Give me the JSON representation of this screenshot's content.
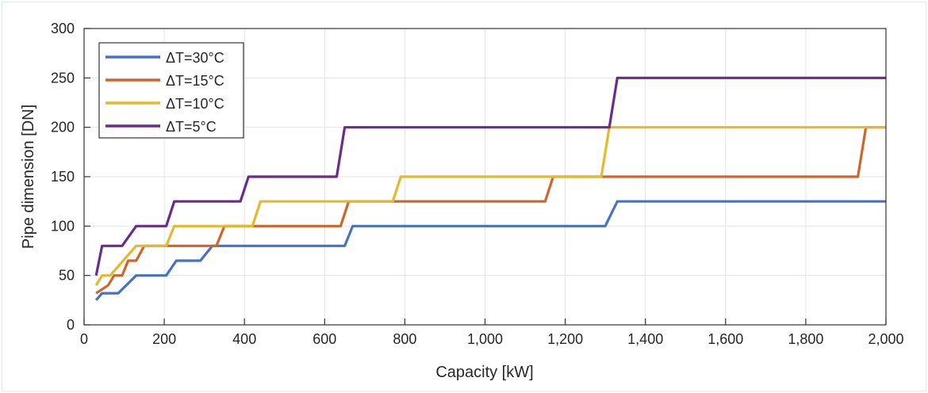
{
  "chart_data": {
    "type": "line",
    "xlabel": "Capacity [kW]",
    "ylabel": "Pipe dimension [DN]",
    "xlim": [
      0,
      2000
    ],
    "ylim": [
      0,
      300
    ],
    "xticks": [
      0,
      200,
      400,
      600,
      800,
      1000,
      1200,
      1400,
      1600,
      1800,
      2000
    ],
    "xtick_labels": [
      "0",
      "200",
      "400",
      "600",
      "800",
      "1,000",
      "1,200",
      "1,400",
      "1,600",
      "1,800",
      "2,000"
    ],
    "yticks": [
      0,
      50,
      100,
      150,
      200,
      250,
      300
    ],
    "ytick_labels": [
      "0",
      "50",
      "100",
      "150",
      "200",
      "250",
      "300"
    ],
    "grid": true,
    "legend_position": "top-left",
    "series": [
      {
        "name": "ΔT=30°C",
        "color": "#4472c4",
        "points": [
          [
            30,
            25
          ],
          [
            45,
            32
          ],
          [
            85,
            32
          ],
          [
            130,
            50
          ],
          [
            205,
            50
          ],
          [
            230,
            65
          ],
          [
            290,
            65
          ],
          [
            320,
            80
          ],
          [
            650,
            80
          ],
          [
            670,
            100
          ],
          [
            1300,
            100
          ],
          [
            1330,
            125
          ],
          [
            2000,
            125
          ]
        ]
      },
      {
        "name": "ΔT=15°C",
        "color": "#d2642a",
        "points": [
          [
            30,
            32
          ],
          [
            60,
            40
          ],
          [
            75,
            50
          ],
          [
            95,
            50
          ],
          [
            110,
            65
          ],
          [
            130,
            65
          ],
          [
            150,
            80
          ],
          [
            330,
            80
          ],
          [
            350,
            100
          ],
          [
            640,
            100
          ],
          [
            660,
            125
          ],
          [
            1150,
            125
          ],
          [
            1170,
            150
          ],
          [
            1930,
            150
          ],
          [
            1950,
            200
          ],
          [
            2000,
            200
          ]
        ]
      },
      {
        "name": "ΔT=10°C",
        "color": "#e6b82e",
        "points": [
          [
            30,
            40
          ],
          [
            45,
            50
          ],
          [
            65,
            50
          ],
          [
            130,
            80
          ],
          [
            205,
            80
          ],
          [
            225,
            100
          ],
          [
            420,
            100
          ],
          [
            440,
            125
          ],
          [
            770,
            125
          ],
          [
            790,
            150
          ],
          [
            1290,
            150
          ],
          [
            1310,
            200
          ],
          [
            2000,
            200
          ]
        ]
      },
      {
        "name": "ΔT=5°C",
        "color": "#6b2a8c",
        "points": [
          [
            30,
            50
          ],
          [
            45,
            80
          ],
          [
            95,
            80
          ],
          [
            130,
            100
          ],
          [
            205,
            100
          ],
          [
            225,
            125
          ],
          [
            390,
            125
          ],
          [
            410,
            150
          ],
          [
            630,
            150
          ],
          [
            650,
            200
          ],
          [
            1310,
            200
          ],
          [
            1330,
            250
          ],
          [
            2000,
            250
          ]
        ]
      }
    ]
  }
}
